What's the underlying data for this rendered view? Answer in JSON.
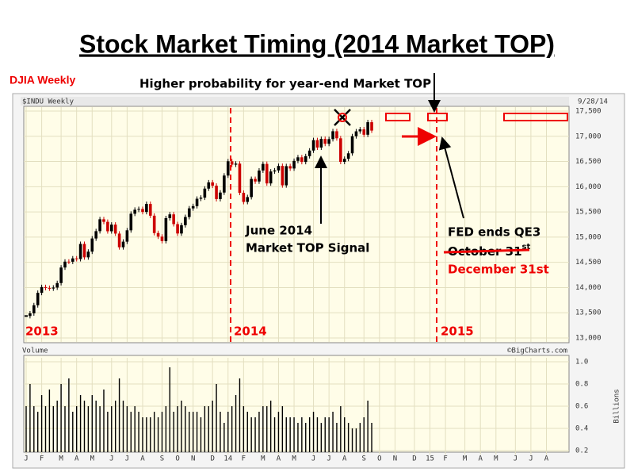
{
  "title": "Stock Market Timing (2014 Market TOP)",
  "label": "DJIA Weekly",
  "note": "Higher probability for year-end Market TOP",
  "annotations": {
    "year_2013": "2013",
    "year_2014": "2014",
    "year_2015": "2015",
    "signal_1": "June 2014",
    "signal_2": "Market TOP Signal",
    "fed": "FED ends QE3",
    "old_date": "October 31",
    "old_date_sup": "st",
    "new_date": "December 31st"
  },
  "chart_data": [
    {
      "type": "candlestick",
      "name": "$INDU Weekly",
      "date": "9/28/14",
      "up_color": "#000000",
      "down_color": "#cc0000",
      "grid": true,
      "values": [
        13435,
        13488,
        13649,
        13895,
        14009,
        13992,
        13981,
        14000,
        14089,
        14397,
        14514,
        14512,
        14578,
        14565,
        14865,
        14599,
        14712,
        14973,
        15118,
        15354,
        15303,
        15116,
        15248,
        15070,
        14799,
        14910,
        15135,
        15464,
        15543,
        15558,
        15499,
        15658,
        15425,
        15081,
        15010,
        14922,
        15376,
        15451,
        15258,
        15072,
        15237,
        15399,
        15570,
        15615,
        15761,
        15783,
        15962,
        16086,
        16020,
        15755,
        15884,
        16221,
        16504,
        16437,
        16458,
        15879,
        15698,
        15794,
        16154,
        16103,
        16321,
        16452,
        16065,
        16302,
        16323,
        16412,
        16027,
        16408,
        16361,
        16512,
        16583,
        16491,
        16606,
        16717,
        16924,
        16776,
        16947,
        16851,
        16944,
        17100,
        16960,
        16493,
        16553,
        16662,
        17001,
        17098,
        17137,
        17031,
        17279,
        17113
      ],
      "xlim": [
        0,
        139
      ],
      "ylim": [
        13000,
        17500
      ],
      "yticks": [
        {
          "value": 13000,
          "label": "13,000"
        },
        {
          "value": 13500,
          "label": "13,500"
        },
        {
          "value": 14000,
          "label": "14,000"
        },
        {
          "value": 14500,
          "label": "14,500"
        },
        {
          "value": 15000,
          "label": "15,000"
        },
        {
          "value": 15500,
          "label": "15,500"
        },
        {
          "value": 16000,
          "label": "16,000"
        },
        {
          "value": 16500,
          "label": "16,500"
        },
        {
          "value": 17000,
          "label": "17,000"
        },
        {
          "value": 17500,
          "label": "17,500"
        }
      ]
    },
    {
      "type": "bar",
      "name": "Volume",
      "credit": "©BigCharts.com",
      "ylabel": "Billions",
      "color": "#000000",
      "grid": true,
      "values": [
        0.6,
        0.8,
        0.6,
        0.55,
        0.7,
        0.6,
        0.75,
        0.6,
        0.65,
        0.8,
        0.6,
        0.85,
        0.55,
        0.6,
        0.7,
        0.65,
        0.6,
        0.7,
        0.65,
        0.6,
        0.75,
        0.55,
        0.6,
        0.65,
        0.85,
        0.65,
        0.6,
        0.55,
        0.6,
        0.55,
        0.5,
        0.5,
        0.5,
        0.55,
        0.5,
        0.55,
        0.6,
        0.95,
        0.55,
        0.6,
        0.65,
        0.6,
        0.55,
        0.55,
        0.55,
        0.5,
        0.6,
        0.6,
        0.65,
        0.8,
        0.55,
        0.45,
        0.55,
        0.6,
        0.7,
        0.85,
        0.6,
        0.55,
        0.5,
        0.5,
        0.55,
        0.6,
        0.6,
        0.65,
        0.5,
        0.55,
        0.6,
        0.5,
        0.5,
        0.5,
        0.45,
        0.5,
        0.45,
        0.5,
        0.55,
        0.5,
        0.45,
        0.5,
        0.5,
        0.55,
        0.45,
        0.6,
        0.5,
        0.45,
        0.4,
        0.4,
        0.45,
        0.5,
        0.65,
        0.45
      ],
      "xlim": [
        0,
        139
      ],
      "ylim": [
        0.2,
        1.0
      ],
      "yticks": [
        0.2,
        0.4,
        0.6,
        0.8,
        {
          "value": 1.0,
          "label": "1.0"
        }
      ],
      "xticks": [
        {
          "value": 0,
          "label": "J"
        },
        {
          "value": 4,
          "label": "F"
        },
        {
          "value": 9,
          "label": "M"
        },
        {
          "value": 13,
          "label": "A"
        },
        {
          "value": 17,
          "label": "M"
        },
        {
          "value": 22,
          "label": "J"
        },
        {
          "value": 26,
          "label": "J"
        },
        {
          "value": 30,
          "label": "A"
        },
        {
          "value": 35,
          "label": "S"
        },
        {
          "value": 39,
          "label": "O"
        },
        {
          "value": 43,
          "label": "N"
        },
        {
          "value": 48,
          "label": "D"
        },
        {
          "value": 52,
          "label": "14"
        },
        {
          "value": 56,
          "label": "F"
        },
        {
          "value": 61,
          "label": "M"
        },
        {
          "value": 65,
          "label": "A"
        },
        {
          "value": 69,
          "label": "M"
        },
        {
          "value": 74,
          "label": "J"
        },
        {
          "value": 78,
          "label": "J"
        },
        {
          "value": 82,
          "label": "A"
        },
        {
          "value": 87,
          "label": "S"
        },
        {
          "value": 91,
          "label": "O"
        },
        {
          "value": 95,
          "label": "N"
        },
        {
          "value": 100,
          "label": "D"
        },
        {
          "value": 104,
          "label": "15"
        },
        {
          "value": 108,
          "label": "F"
        },
        {
          "value": 113,
          "label": "M"
        },
        {
          "value": 117,
          "label": "A"
        },
        {
          "value": 121,
          "label": "M"
        },
        {
          "value": 126,
          "label": "J"
        },
        {
          "value": 130,
          "label": "J"
        },
        {
          "value": 134,
          "label": "A"
        }
      ]
    }
  ]
}
